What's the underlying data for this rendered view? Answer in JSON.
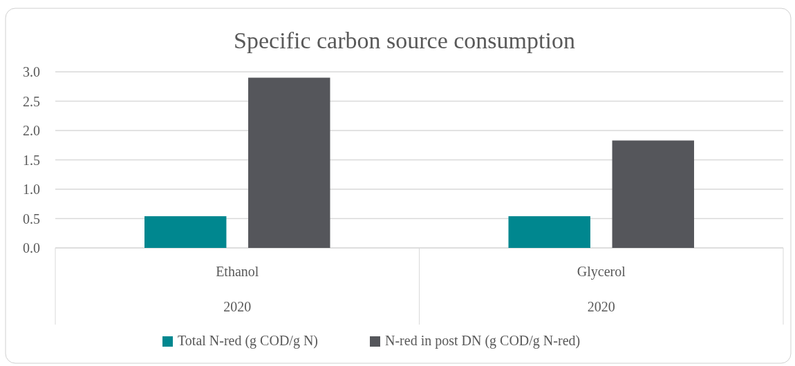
{
  "chart_data": {
    "type": "bar",
    "title": "Specific carbon source consumption",
    "categories": [
      "Ethanol",
      "Glycerol"
    ],
    "series": [
      {
        "name": "Total N-red (g COD/g N)",
        "color": "#00878f",
        "values": [
          0.54,
          0.54
        ]
      },
      {
        "name": "N-red in post DN (g COD/g N-red)",
        "color": "#55565b",
        "values": [
          2.9,
          1.83
        ]
      }
    ],
    "annotations": [
      "2020",
      "2020"
    ],
    "ylim": [
      0,
      3
    ],
    "yticks": [
      {
        "value": 0,
        "label": "0.0"
      },
      {
        "value": 0.5,
        "label": "0.5"
      },
      {
        "value": 1,
        "label": "1.0"
      },
      {
        "value": 1.5,
        "label": "1.5"
      },
      {
        "value": 2,
        "label": "2.0"
      },
      {
        "value": 2.5,
        "label": "2.5"
      },
      {
        "value": 3,
        "label": "3.0"
      }
    ],
    "grid": "y",
    "legend": "bottom"
  }
}
